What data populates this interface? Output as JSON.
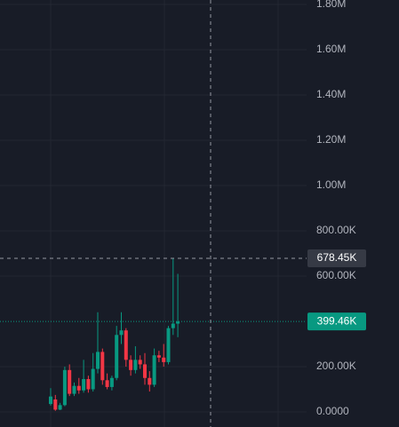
{
  "chart_data": {
    "type": "candlestick",
    "ylim": [
      -66667,
      1819608
    ],
    "yticks": [
      {
        "value": 0,
        "label": "0.0000"
      },
      {
        "value": 200000,
        "label": "200.00K"
      },
      {
        "value": 600000,
        "label": "600.00K"
      },
      {
        "value": 800000,
        "label": "800.00K"
      },
      {
        "value": 1000000,
        "label": "1.00M"
      },
      {
        "value": 1200000,
        "label": "1.20M"
      },
      {
        "value": 1400000,
        "label": "1.40M"
      },
      {
        "value": 1600000,
        "label": "1.60M"
      },
      {
        "value": 1800000,
        "label": "1.80M"
      }
    ],
    "grid": true,
    "up_color": "#089981",
    "down_color": "#f23645",
    "open": [
      35000,
      55000,
      10000,
      30000,
      185000,
      80000,
      115000,
      95000,
      145000,
      100000,
      190000,
      265000,
      140000,
      110000,
      150000,
      340000,
      360000,
      230000,
      185000,
      230000,
      210000,
      150000,
      120000,
      250000,
      240000,
      220000,
      370000,
      390000
    ],
    "high": [
      105000,
      75000,
      40000,
      200000,
      210000,
      130000,
      150000,
      230000,
      160000,
      260000,
      440000,
      280000,
      170000,
      160000,
      380000,
      440000,
      370000,
      250000,
      290000,
      250000,
      260000,
      180000,
      280000,
      270000,
      300000,
      380000,
      678000,
      610000
    ],
    "low": [
      28000,
      5000,
      8000,
      25000,
      70000,
      70000,
      80000,
      85000,
      85000,
      90000,
      170000,
      120000,
      100000,
      95000,
      140000,
      300000,
      200000,
      160000,
      170000,
      190000,
      120000,
      90000,
      110000,
      220000,
      200000,
      210000,
      340000,
      330000
    ],
    "close": [
      68000,
      10000,
      30000,
      185000,
      80000,
      115000,
      95000,
      145000,
      100000,
      190000,
      265000,
      140000,
      110000,
      150000,
      340000,
      360000,
      230000,
      185000,
      230000,
      210000,
      150000,
      120000,
      250000,
      240000,
      220000,
      370000,
      390000,
      399460
    ],
    "last_price_label": "399.46K",
    "crosshair": {
      "value": 678450,
      "label": "678.45K"
    }
  }
}
